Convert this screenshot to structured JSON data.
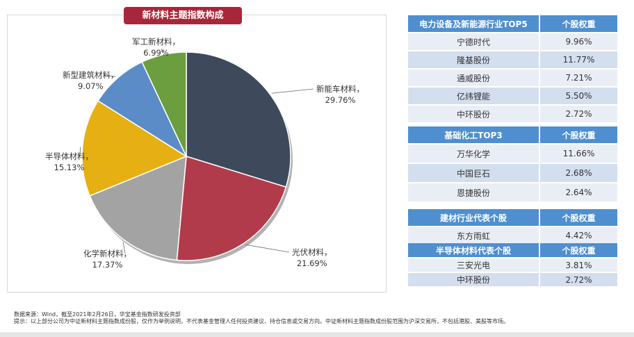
{
  "chart_data": {
    "type": "pie",
    "title": "新材料主题指数构成",
    "slices": [
      {
        "label": "新能车材料",
        "value": 29.76,
        "color": "#3e4a5b"
      },
      {
        "label": "光伏材料",
        "value": 21.69,
        "color": "#b23b4b"
      },
      {
        "label": "化学新材料",
        "value": 17.37,
        "color": "#a3a3a3"
      },
      {
        "label": "半导体材料",
        "value": 15.13,
        "color": "#e6b012"
      },
      {
        "label": "新型建筑材料",
        "value": 9.07,
        "color": "#5b8cc7"
      },
      {
        "label": "军工新材料",
        "value": 6.99,
        "color": "#6b9e3e"
      }
    ],
    "display": [
      "29.76%",
      "21.69%",
      "17.37%",
      "15.13%",
      "9.07%",
      "6.99%"
    ]
  },
  "tables": [
    {
      "header": [
        "电力设备及新能源行业TOP5",
        "个股权重"
      ],
      "rows": [
        [
          "宁德时代",
          "9.96%"
        ],
        [
          "隆基股份",
          "11.77%"
        ],
        [
          "通威股份",
          "7.21%"
        ],
        [
          "亿纬锂能",
          "5.50%"
        ],
        [
          "中环股份",
          "2.72%"
        ]
      ]
    },
    {
      "header": [
        "基础化工TOP3",
        "个股权重"
      ],
      "rows": [
        [
          "万华化学",
          "11.66%"
        ],
        [
          "中国巨石",
          "2.68%"
        ],
        [
          "恩捷股份",
          "2.64%"
        ]
      ]
    },
    {
      "header": [
        "建材行业代表个股",
        "个股权重"
      ],
      "rows": [
        [
          "东方雨虹",
          "4.42%"
        ]
      ]
    },
    {
      "header": [
        "半导体材料代表个股",
        "个股权重"
      ],
      "rows": [
        [
          "三安光电",
          "3.81%"
        ],
        [
          "中环股份",
          "2.72%"
        ]
      ]
    }
  ],
  "notes": {
    "source": "数据来源：Wind，截至2021年2月26日，华宝基金指数研发投资部",
    "tip": "提示：以上部分公司为中证新材料主题指数成份股，仅作为举例说明，不代表基金管理人任何投资建议、持仓信息或交易方向。中证新材料主题指数成份股范围为沪深交易所，不包括港股、美股等市场。"
  }
}
